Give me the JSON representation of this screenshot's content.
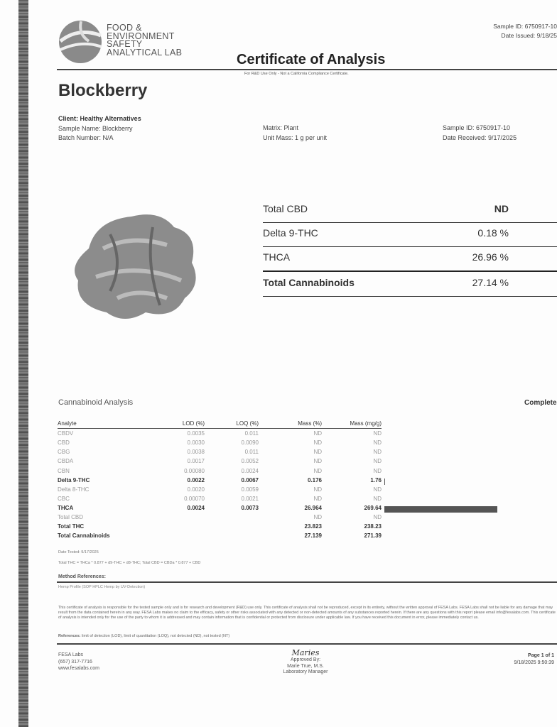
{
  "lab": {
    "name_lines": [
      "FOOD &",
      "ENVIRONMENT",
      "SAFETY",
      "ANALYTICAL LAB"
    ]
  },
  "header": {
    "sample_id": "Sample ID: 6750917-10",
    "date_issued": "Date Issued: 9/18/25",
    "title": "Certificate of Analysis",
    "subtitle": "For R&D Use Only - Not a California Compliance Certificate."
  },
  "product": {
    "name": "Blockberry",
    "client": "Client: Healthy Alternatives",
    "sample_name": "Sample Name: Blockberry",
    "batch": "Batch Number: N/A",
    "matrix": "Matrix: Plant",
    "unit_mass": "Unit Mass: 1 g per unit",
    "sample_id": "Sample ID: 6750917-10",
    "date_received": "Date Received: 9/17/2025"
  },
  "summary": [
    {
      "label": "Total CBD",
      "value": "ND"
    },
    {
      "label": "Delta 9-THC",
      "value": "0.18 %"
    },
    {
      "label": "THCA",
      "value": "26.96 %"
    },
    {
      "label": "Total Cannabinoids",
      "value": "27.14 %"
    }
  ],
  "analysis": {
    "title": "Cannabinoid Analysis",
    "status": "Complete",
    "headers": [
      "Analyte",
      "LOD (%)",
      "LOQ (%)",
      "Mass (%)",
      "Mass (mg/g)"
    ],
    "rows": [
      [
        "CBDV",
        "0.0035",
        "0.011",
        "ND",
        "ND"
      ],
      [
        "CBD",
        "0.0030",
        "0.0090",
        "ND",
        "ND"
      ],
      [
        "CBG",
        "0.0038",
        "0.011",
        "ND",
        "ND"
      ],
      [
        "CBDA",
        "0.0017",
        "0.0052",
        "ND",
        "ND"
      ],
      [
        "CBN",
        "0.00080",
        "0.0024",
        "ND",
        "ND"
      ],
      [
        "Delta 9-THC",
        "0.0022",
        "0.0067",
        "0.176",
        "1.76"
      ],
      [
        "Delta 8-THC",
        "0.0020",
        "0.0059",
        "ND",
        "ND"
      ],
      [
        "CBC",
        "0.00070",
        "0.0021",
        "ND",
        "ND"
      ],
      [
        "THCA",
        "0.0024",
        "0.0073",
        "26.964",
        "269.64"
      ],
      [
        "Total CBD",
        "",
        "",
        "ND",
        "ND"
      ],
      [
        "Total THC",
        "",
        "",
        "23.823",
        "238.23"
      ],
      [
        "Total Cannabinoids",
        "",
        "",
        "27.139",
        "271.39"
      ]
    ],
    "date_tested": "Date Tested: 9/17/2025",
    "formula": "Total THC = THCa * 0.877 + d9-THC + d8-THC; Total CBD = CBDa * 0.877 + CBD",
    "method_title": "Method References:",
    "method": "Hemp Profile (SOP HPLC Hemp by UV-Detection)"
  },
  "disclaimer": "This certificate of analysis is responsible for the tested sample only and is for research and development (R&D) use only. This certificate of analysis shall not be reproduced, except in its entirety, without the written approval of FESA Labs. FESA Labs shall not be liable for any damage that may result from the data contained herein in any way. FESA Labs makes no claim to the efficacy, safety or other risks associated with any detected or non-detected amounts of any substances reported herein. If there are any questions with this report please email info@fesalabs.com. This certificate of analysis is intended only for the use of the party to whom it is addressed and may contain information that is confidential or protected from disclosure under applicable law. If you have received this document in error, please immediately contact us.",
  "references_label": "References:",
  "references": " limit of detection (LOD), limit of quantitation (LOQ), not detected (ND), not tested (NT)",
  "footer": {
    "company": "FESA Labs",
    "phone": "(657) 317-7716",
    "web": "www.fesalabs.com",
    "signature": "Maries",
    "approved": "Approved By:",
    "approver": "Marie True, M.S.",
    "role": "Laboratory Manager",
    "page": "Page 1 of 1",
    "timestamp": "9/18/2025 9:50:39"
  }
}
